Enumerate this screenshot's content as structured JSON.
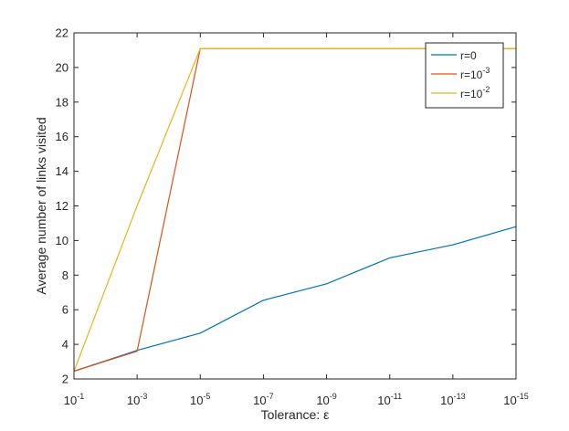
{
  "chart_data": {
    "type": "line",
    "xlabel": "Tolerance: ε",
    "ylabel": "Average number of links visited",
    "x_scale": "log",
    "x_reversed": true,
    "xlim": [
      0.1,
      1e-15
    ],
    "ylim": [
      2,
      22
    ],
    "x_ticks": [
      0.1,
      0.001,
      1e-05,
      1e-07,
      1e-09,
      1e-11,
      1e-13,
      1e-15
    ],
    "x_tick_labels": [
      {
        "base": "10",
        "exp": "-1"
      },
      {
        "base": "10",
        "exp": "-3"
      },
      {
        "base": "10",
        "exp": "-5"
      },
      {
        "base": "10",
        "exp": "-7"
      },
      {
        "base": "10",
        "exp": "-9"
      },
      {
        "base": "10",
        "exp": "-11"
      },
      {
        "base": "10",
        "exp": "-13"
      },
      {
        "base": "10",
        "exp": "-15"
      }
    ],
    "y_ticks": [
      2,
      4,
      6,
      8,
      10,
      12,
      14,
      16,
      18,
      20,
      22
    ],
    "y_tick_labels": [
      "2",
      "4",
      "6",
      "8",
      "10",
      "12",
      "14",
      "16",
      "18",
      "20",
      "22"
    ],
    "grid": false,
    "legend_position": "top-right",
    "series": [
      {
        "name": "r=0",
        "label": {
          "base": "r=0",
          "exp": ""
        },
        "color": "#0072bd",
        "x": [
          0.1,
          0.001,
          1e-05,
          1e-07,
          1e-09,
          1e-11,
          1e-13,
          1e-15
        ],
        "y": [
          2.45,
          3.65,
          4.65,
          6.55,
          7.5,
          9.0,
          9.75,
          10.8
        ]
      },
      {
        "name": "r=10^-3",
        "label": {
          "base": "r=10",
          "exp": "-3"
        },
        "color": "#d95319",
        "x": [
          0.1,
          0.001,
          1e-05,
          1e-07,
          1e-09,
          1e-11,
          1e-13,
          1e-15
        ],
        "y": [
          2.45,
          3.6,
          21.1,
          21.1,
          21.1,
          21.1,
          21.1,
          21.1
        ]
      },
      {
        "name": "r=10^-2",
        "label": {
          "base": "r=10",
          "exp": "-2"
        },
        "color": "#edb120",
        "x": [
          0.1,
          0.001,
          1e-05,
          1e-07,
          1e-09,
          1e-11,
          1e-13,
          1e-15
        ],
        "y": [
          2.45,
          12.0,
          21.1,
          21.1,
          21.1,
          21.1,
          21.1,
          21.1
        ]
      }
    ]
  }
}
